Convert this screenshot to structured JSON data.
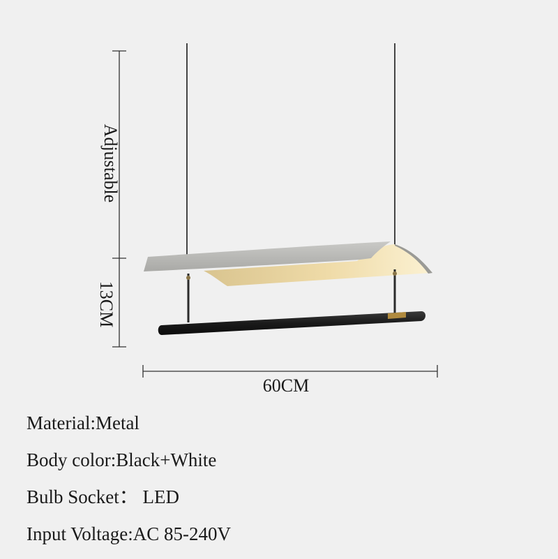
{
  "dimensions": {
    "adjustable_label": "Adjustable",
    "height_label": "13CM",
    "width_label": "60CM"
  },
  "specs": [
    "Material:Metal",
    "Body color:Black+White",
    "Bulb Socket： LED",
    "Input Voltage:AC 85-240V"
  ],
  "colors": {
    "background": "#f0f0f0",
    "shade_top": "#b9b9b6",
    "shade_inner": "#f3e3b6",
    "rod": "#1c1c1c",
    "brass": "#b08a3e"
  }
}
